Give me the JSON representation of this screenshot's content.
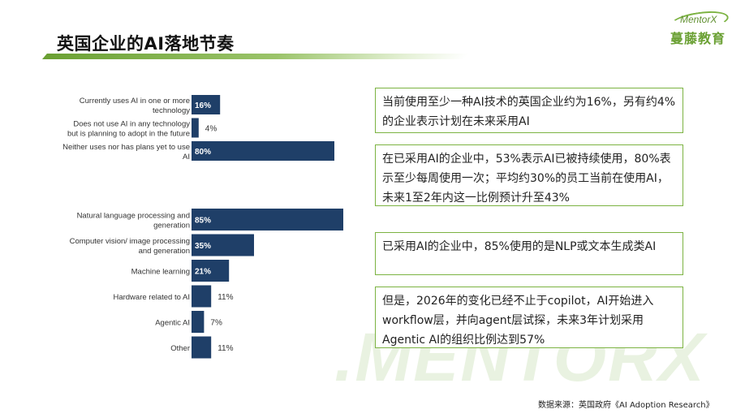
{
  "header": {
    "title": "英国企业的AI落地节奏",
    "logo_small": "MentorX",
    "logo_big": "蔓藤教育"
  },
  "watermark": ".MENTORX",
  "colors": {
    "bar": "#1f3f68",
    "accent": "#7cb342"
  },
  "chart_data": [
    {
      "type": "bar",
      "orientation": "horizontal",
      "title": "",
      "categories": [
        [
          "Currently uses AI in one or more",
          "technology"
        ],
        [
          "Does not use AI in any technology",
          "but is planning to adopt in the future"
        ],
        [
          "Neither uses nor has plans yet to use",
          "AI"
        ]
      ],
      "values": [
        16,
        4,
        80
      ],
      "value_labels": [
        "16%",
        "4%",
        "80%"
      ],
      "unit": "%",
      "xlim": [
        0,
        85
      ],
      "grid": false
    },
    {
      "type": "bar",
      "orientation": "horizontal",
      "title": "",
      "categories": [
        [
          "Natural language processing and",
          "generation"
        ],
        [
          "Computer vision/ image processing",
          "and generation"
        ],
        [
          "Machine learning"
        ],
        [
          "Hardware related to AI"
        ],
        [
          "Agentic AI"
        ],
        [
          "Other"
        ]
      ],
      "values": [
        85,
        35,
        21,
        11,
        7,
        11
      ],
      "value_labels": [
        "85%",
        "35%",
        "21%",
        "11%",
        "7%",
        "11%"
      ],
      "unit": "%",
      "xlim": [
        0,
        85
      ],
      "grid": false
    }
  ],
  "callouts": [
    {
      "text": "当前使用至少一种AI技术的英国企业约为16%，另有约4%的企业表示计划在未来采用AI"
    },
    {
      "text": "在已采用AI的企业中，53%表示AI已被持续使用，80%表示至少每周使用一次；平均约30%的员工当前在使用AI，未来1至2年内这一比例预计升至43%"
    },
    {
      "text": "已采用AI的企业中，85%使用的是NLP或文本生成类AI"
    },
    {
      "text": "但是，2026年的变化已经不止于copilot，AI开始进入workflow层，并向agent层试探，未来3年计划采用Agentic AI的组织比例达到57%"
    }
  ],
  "source": "数据来源：英国政府《AI Adoption Research》"
}
